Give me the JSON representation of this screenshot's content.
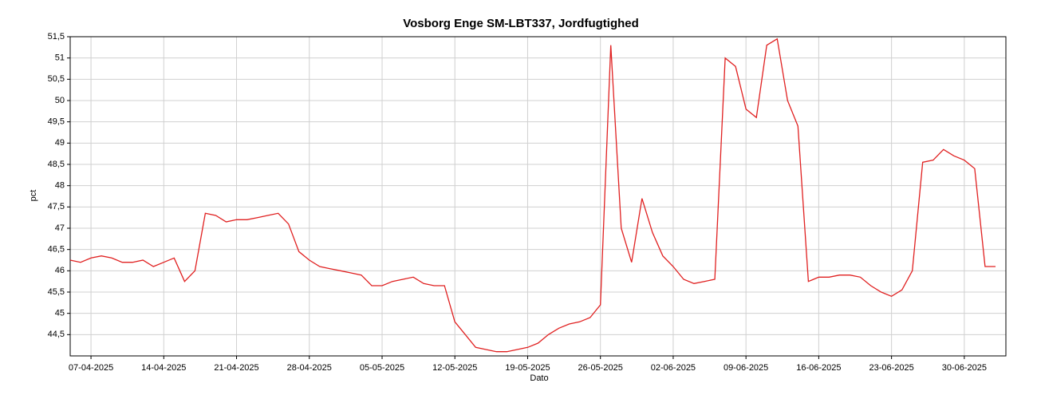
{
  "chart_data": {
    "type": "line",
    "title": "Vosborg Enge SM-LBT337, Jordfugtighed",
    "x_label": "Dato",
    "y_label": "pct",
    "grid": true,
    "xlim": [
      "2025-04-05",
      "2025-07-04"
    ],
    "ylim": [
      44,
      51.5
    ],
    "xticks": [
      {
        "value": "2025-04-07",
        "label": "07-04-2025"
      },
      {
        "value": "2025-04-14",
        "label": "14-04-2025"
      },
      {
        "value": "2025-04-21",
        "label": "21-04-2025"
      },
      {
        "value": "2025-04-28",
        "label": "28-04-2025"
      },
      {
        "value": "2025-05-05",
        "label": "05-05-2025"
      },
      {
        "value": "2025-05-12",
        "label": "12-05-2025"
      },
      {
        "value": "2025-05-19",
        "label": "19-05-2025"
      },
      {
        "value": "2025-05-26",
        "label": "26-05-2025"
      },
      {
        "value": "2025-06-02",
        "label": "02-06-2025"
      },
      {
        "value": "2025-06-09",
        "label": "09-06-2025"
      },
      {
        "value": "2025-06-16",
        "label": "16-06-2025"
      },
      {
        "value": "2025-06-23",
        "label": "23-06-2025"
      },
      {
        "value": "2025-06-30",
        "label": "30-06-2025"
      }
    ],
    "yticks": [
      {
        "value": 44.5,
        "label": "44,5"
      },
      45,
      {
        "value": 45.5,
        "label": "45,5"
      },
      46,
      {
        "value": 46.5,
        "label": "46,5"
      },
      47,
      {
        "value": 47.5,
        "label": "47,5"
      },
      48,
      {
        "value": 48.5,
        "label": "48,5"
      },
      49,
      {
        "value": 49.5,
        "label": "49,5"
      },
      50,
      {
        "value": 50.5,
        "label": "50,5"
      },
      51,
      {
        "value": 51.5,
        "label": "51,5"
      }
    ],
    "x": [
      "2025-04-05",
      "2025-04-06",
      "2025-04-07",
      "2025-04-08",
      "2025-04-09",
      "2025-04-10",
      "2025-04-11",
      "2025-04-12",
      "2025-04-13",
      "2025-04-14",
      "2025-04-15",
      "2025-04-16",
      "2025-04-17",
      "2025-04-18",
      "2025-04-19",
      "2025-04-20",
      "2025-04-21",
      "2025-04-22",
      "2025-04-23",
      "2025-04-24",
      "2025-04-25",
      "2025-04-26",
      "2025-04-27",
      "2025-04-28",
      "2025-04-29",
      "2025-04-30",
      "2025-05-01",
      "2025-05-02",
      "2025-05-03",
      "2025-05-04",
      "2025-05-05",
      "2025-05-06",
      "2025-05-07",
      "2025-05-08",
      "2025-05-09",
      "2025-05-10",
      "2025-05-11",
      "2025-05-12",
      "2025-05-13",
      "2025-05-14",
      "2025-05-15",
      "2025-05-16",
      "2025-05-17",
      "2025-05-18",
      "2025-05-19",
      "2025-05-20",
      "2025-05-21",
      "2025-05-22",
      "2025-05-23",
      "2025-05-24",
      "2025-05-25",
      "2025-05-26",
      "2025-05-27",
      "2025-05-28",
      "2025-05-29",
      "2025-05-30",
      "2025-05-31",
      "2025-06-01",
      "2025-06-02",
      "2025-06-03",
      "2025-06-04",
      "2025-06-05",
      "2025-06-06",
      "2025-06-07",
      "2025-06-08",
      "2025-06-09",
      "2025-06-10",
      "2025-06-11",
      "2025-06-12",
      "2025-06-13",
      "2025-06-14",
      "2025-06-15",
      "2025-06-16",
      "2025-06-17",
      "2025-06-18",
      "2025-06-19",
      "2025-06-20",
      "2025-06-21",
      "2025-06-22",
      "2025-06-23",
      "2025-06-24",
      "2025-06-25",
      "2025-06-26",
      "2025-06-27",
      "2025-06-28",
      "2025-06-29",
      "2025-06-30",
      "2025-07-01",
      "2025-07-02",
      "2025-07-03"
    ],
    "series": [
      {
        "color": "#e02020",
        "values": [
          46.25,
          46.2,
          46.3,
          46.35,
          46.3,
          46.2,
          46.2,
          46.25,
          46.1,
          46.2,
          46.3,
          45.75,
          46.0,
          47.35,
          47.3,
          47.15,
          47.2,
          47.2,
          47.25,
          47.3,
          47.35,
          47.1,
          46.45,
          46.25,
          46.1,
          46.05,
          46.0,
          45.95,
          45.9,
          45.65,
          45.65,
          45.75,
          45.8,
          45.85,
          45.7,
          45.65,
          45.65,
          44.8,
          44.5,
          44.2,
          44.15,
          44.1,
          44.1,
          44.15,
          44.2,
          44.3,
          44.5,
          44.65,
          44.75,
          44.8,
          44.9,
          45.2,
          51.3,
          47.0,
          46.2,
          47.7,
          46.9,
          46.35,
          46.1,
          45.8,
          45.7,
          45.75,
          45.8,
          51.0,
          50.8,
          49.8,
          49.6,
          51.3,
          51.45,
          50.0,
          49.4,
          45.75,
          45.85,
          45.85,
          45.9,
          45.9,
          45.85,
          45.65,
          45.5,
          45.4,
          45.55,
          46.0,
          48.55,
          48.6,
          48.85,
          48.7,
          48.6,
          48.4,
          46.1,
          46.1
        ]
      }
    ]
  }
}
